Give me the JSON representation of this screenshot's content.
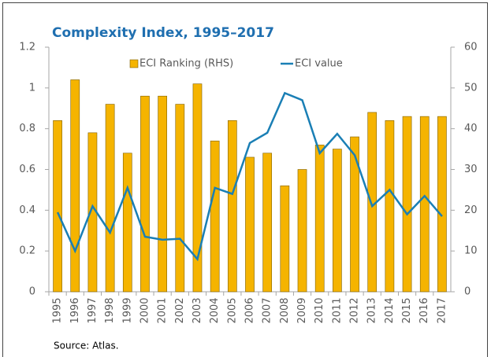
{
  "chart_data": {
    "type": "bar",
    "title": "Complexity Index, 1995–2017",
    "source": "Source: Atlas.",
    "categories": [
      "1995",
      "1996",
      "1997",
      "1998",
      "1999",
      "2000",
      "2001",
      "2002",
      "2003",
      "2004",
      "2005",
      "2006",
      "2007",
      "2008",
      "2009",
      "2010",
      "2011",
      "2012",
      "2013",
      "2014",
      "2015",
      "2016",
      "2017"
    ],
    "series": [
      {
        "name": "ECI Ranking (RHS)",
        "type": "bar",
        "axis": "y2",
        "color": "#f5b400",
        "values": [
          42,
          52,
          39,
          46,
          34,
          48,
          48,
          46,
          51,
          37,
          42,
          33,
          34,
          26,
          30,
          36,
          35,
          38,
          44,
          42,
          43,
          43,
          43
        ]
      },
      {
        "name": "ECI value",
        "type": "line",
        "color": "#1a7fb5",
        "values": [
          0.39,
          0.2,
          0.42,
          0.29,
          0.51,
          0.27,
          0.255,
          0.26,
          0.16,
          0.51,
          0.48,
          0.73,
          0.78,
          0.975,
          0.94,
          0.68,
          0.775,
          0.67,
          0.42,
          0.5,
          0.38,
          0.47,
          0.37
        ]
      }
    ],
    "ylim": [
      0,
      1.2
    ],
    "yticks": [
      0,
      0.2,
      0.4,
      0.6,
      0.8,
      1,
      1.2
    ],
    "y2lim": [
      0,
      60
    ],
    "y2ticks": [
      0,
      10,
      20,
      30,
      40,
      50,
      60
    ],
    "grid": false
  }
}
